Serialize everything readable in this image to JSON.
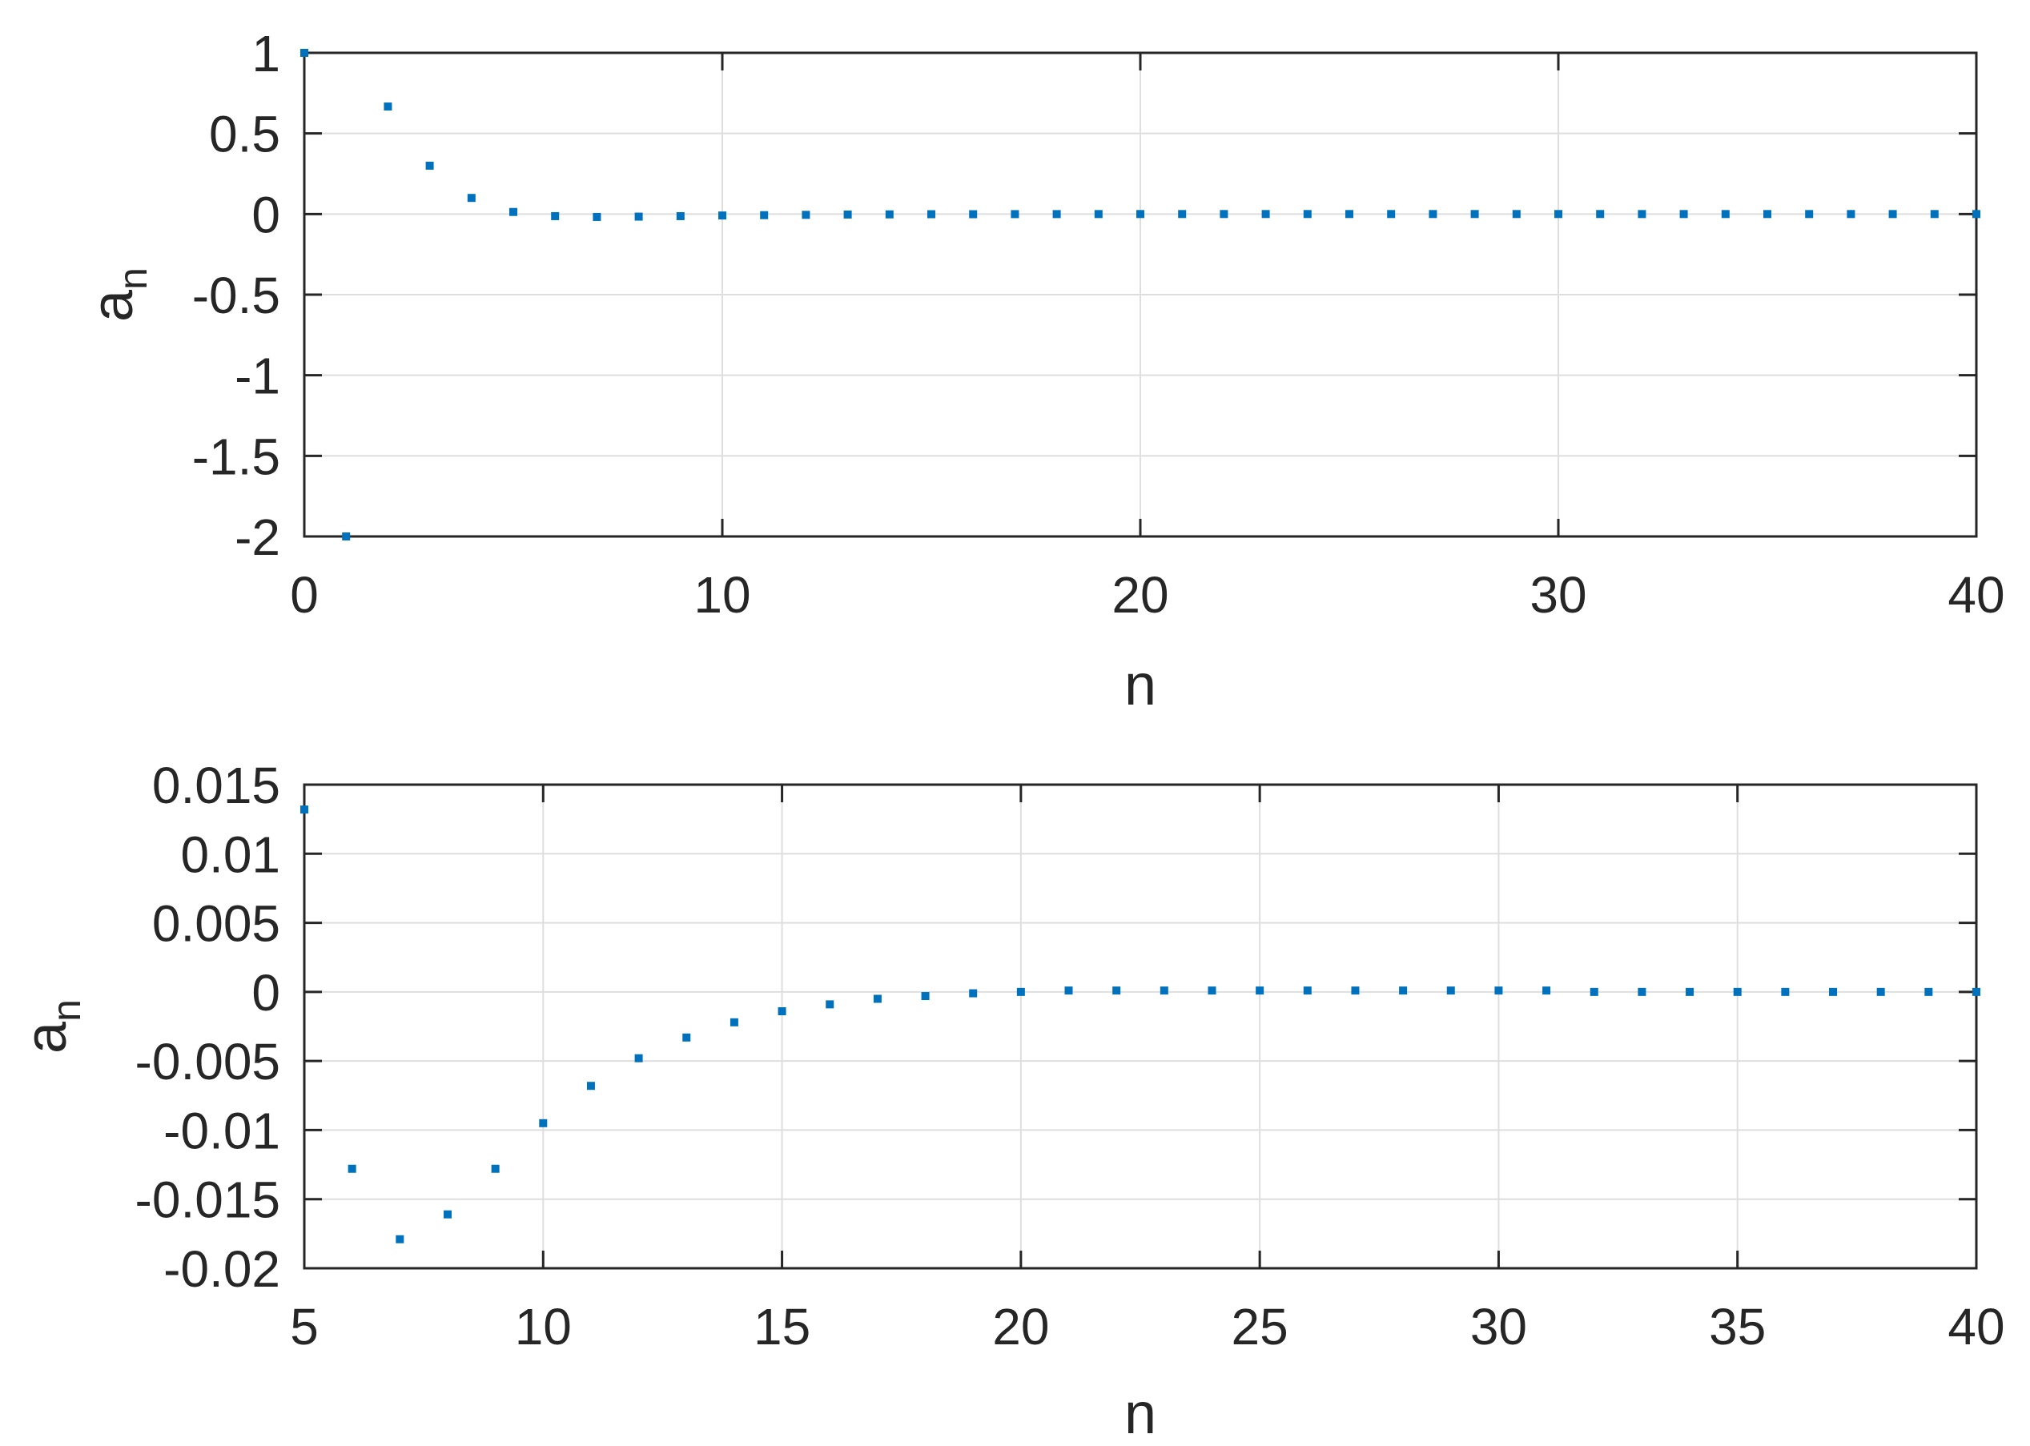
{
  "chart_data": [
    {
      "type": "scatter",
      "xlabel": "n",
      "ylabel": "a",
      "ylabel_subscript": "n",
      "xlim": [
        0,
        40
      ],
      "ylim": [
        -2,
        1
      ],
      "grid": true,
      "xticks": [
        0,
        10,
        20,
        30,
        40
      ],
      "xtick_labels": [
        "0",
        "10",
        "20",
        "30",
        "40"
      ],
      "yticks": [
        1,
        0.5,
        0,
        -0.5,
        -1,
        -1.5,
        -2
      ],
      "ytick_labels": [
        "1",
        "0.5",
        "0",
        "-0.5",
        "-1",
        "-1.5",
        "-2"
      ],
      "marker_color": "#0072BD",
      "series": [
        {
          "x": [
            0,
            1,
            2,
            3,
            4,
            5,
            6,
            7,
            8,
            9,
            10,
            11,
            12,
            13,
            14,
            15,
            16,
            17,
            18,
            19,
            20,
            21,
            22,
            23,
            24,
            25,
            26,
            27,
            28,
            29,
            30,
            31,
            32,
            33,
            34,
            35,
            36,
            37,
            38,
            39,
            40
          ],
          "y": [
            1,
            -2,
            0.667,
            0.3,
            0.1,
            0.013,
            -0.013,
            -0.018,
            -0.016,
            -0.013,
            -0.009,
            -0.007,
            -0.005,
            -0.003,
            -0.002,
            -0.001,
            -0.001,
            -0.0005,
            -0.0003,
            -0.0001,
            0,
            0.0001,
            0.0001,
            0.0001,
            0.0001,
            0.0001,
            0.0001,
            0.0001,
            0.0001,
            0.0001,
            0.0001,
            0.0001,
            0,
            0,
            0,
            0,
            0,
            0,
            0,
            0,
            0
          ]
        }
      ]
    },
    {
      "type": "scatter",
      "xlabel": "n",
      "ylabel": "a",
      "ylabel_subscript": "n",
      "xlim": [
        5,
        40
      ],
      "ylim": [
        -0.02,
        0.015
      ],
      "grid": true,
      "xticks": [
        5,
        10,
        15,
        20,
        25,
        30,
        35,
        40
      ],
      "xtick_labels": [
        "5",
        "10",
        "15",
        "20",
        "25",
        "30",
        "35",
        "40"
      ],
      "yticks": [
        0.015,
        0.01,
        0.005,
        0,
        -0.005,
        -0.01,
        -0.015,
        -0.02
      ],
      "ytick_labels": [
        "0.015",
        "0.01",
        "0.005",
        "0",
        "-0.005",
        "-0.01",
        "-0.015",
        "-0.02"
      ],
      "marker_color": "#0072BD",
      "series": [
        {
          "x": [
            5,
            6,
            7,
            8,
            9,
            10,
            11,
            12,
            13,
            14,
            15,
            16,
            17,
            18,
            19,
            20,
            21,
            22,
            23,
            24,
            25,
            26,
            27,
            28,
            29,
            30,
            31,
            32,
            33,
            34,
            35,
            36,
            37,
            38,
            39,
            40
          ],
          "y": [
            0.0132,
            -0.0128,
            -0.0179,
            -0.0161,
            -0.0128,
            -0.0095,
            -0.0068,
            -0.0048,
            -0.0033,
            -0.0022,
            -0.0014,
            -0.0009,
            -0.0005,
            -0.0003,
            -0.0001,
            0,
            0.0001,
            0.0001,
            0.0001,
            0.0001,
            0.0001,
            0.0001,
            0.0001,
            0.0001,
            0.0001,
            0.0001,
            0.0001,
            0,
            0,
            0,
            0,
            0,
            0,
            0,
            0,
            0
          ]
        }
      ]
    }
  ]
}
